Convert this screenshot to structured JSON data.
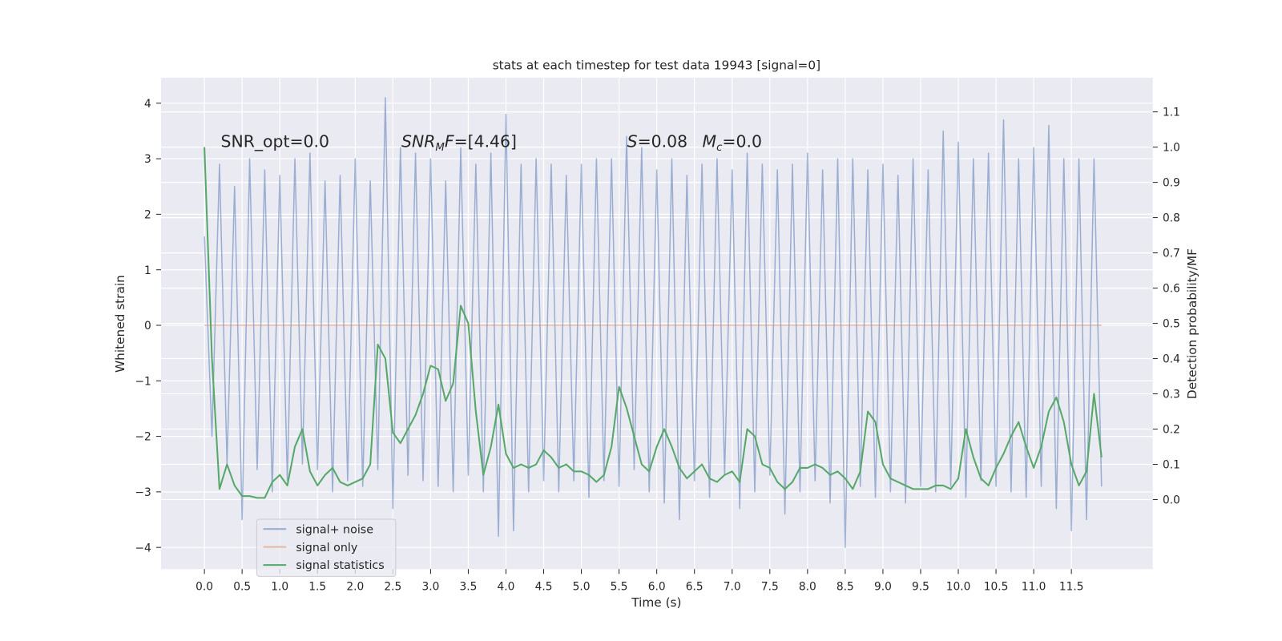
{
  "chart_data": {
    "type": "line",
    "title": "stats at each timestep for test data 19943 [signal=0]",
    "xlabel": "Time (s)",
    "ylabel": "Whitened strain",
    "y2label": "Detection probability/MF",
    "xlim": [
      -0.575,
      12.58
    ],
    "ylim": [
      -4.39,
      4.46
    ],
    "y2lim": [
      -0.197,
      1.197
    ],
    "xticks": [
      {
        "value": 0,
        "label": "0.0"
      },
      0.5,
      {
        "value": 1,
        "label": "1.0"
      },
      1.5,
      {
        "value": 2,
        "label": "2.0"
      },
      2.5,
      {
        "value": 3,
        "label": "3.0"
      },
      3.5,
      {
        "value": 4,
        "label": "4.0"
      },
      4.5,
      {
        "value": 5,
        "label": "5.0"
      },
      5.5,
      {
        "value": 6,
        "label": "6.0"
      },
      6.5,
      {
        "value": 7,
        "label": "7.0"
      },
      7.5,
      {
        "value": 8,
        "label": "8.0"
      },
      8.5,
      {
        "value": 9,
        "label": "9.0"
      },
      9.5,
      {
        "value": 10,
        "label": "10.0"
      },
      10.5,
      {
        "value": 11,
        "label": "11.0"
      },
      11.5
    ],
    "yticks": [
      {
        "value": -4,
        "label": "−4"
      },
      {
        "value": -3,
        "label": "−3"
      },
      {
        "value": -2,
        "label": "−2"
      },
      {
        "value": -1,
        "label": "−1"
      },
      0,
      1,
      2,
      3,
      4
    ],
    "y2ticks": [
      {
        "value": 0,
        "label": "0.0"
      },
      0.1,
      0.2,
      0.3,
      0.4,
      0.5,
      0.6,
      0.7,
      0.8,
      0.9,
      {
        "value": 1,
        "label": "1.0"
      },
      1.1
    ],
    "grid": true,
    "legend": "lower left",
    "annotations": [
      [
        {
          "text": "SNR_opt=0.0"
        }
      ],
      [
        {
          "text": "SNR",
          "style": "italic"
        },
        {
          "text": "M",
          "style": "sub"
        },
        {
          "text": "F",
          "style": "italic"
        },
        {
          "text": "=[4.46]"
        }
      ],
      [
        {
          "text": "S",
          "style": "italic"
        },
        {
          "text": "=0.08"
        }
      ],
      [
        {
          "text": "M",
          "style": "italic"
        },
        {
          "text": "c",
          "style": "sub"
        },
        {
          "text": "=0.0"
        }
      ]
    ],
    "x": [
      0,
      0.1,
      0.2,
      0.3,
      0.4,
      0.5,
      0.6,
      0.7,
      0.8,
      0.9,
      1,
      1.1,
      1.2,
      1.3,
      1.4,
      1.5,
      1.6,
      1.7,
      1.8,
      1.9,
      2,
      2.1,
      2.2,
      2.3,
      2.4,
      2.5,
      2.6,
      2.7,
      2.8,
      2.9,
      3,
      3.1,
      3.2,
      3.3,
      3.4,
      3.5,
      3.6,
      3.7,
      3.8,
      3.9,
      4,
      4.1,
      4.2,
      4.3,
      4.4,
      4.5,
      4.6,
      4.7,
      4.8,
      4.9,
      5,
      5.1,
      5.2,
      5.3,
      5.4,
      5.5,
      5.6,
      5.7,
      5.8,
      5.9,
      6,
      6.1,
      6.2,
      6.3,
      6.4,
      6.5,
      6.6,
      6.7,
      6.8,
      6.9,
      7,
      7.1,
      7.2,
      7.3,
      7.4,
      7.5,
      7.6,
      7.7,
      7.8,
      7.9,
      8,
      8.1,
      8.2,
      8.3,
      8.4,
      8.5,
      8.6,
      8.7,
      8.8,
      8.9,
      9,
      9.1,
      9.2,
      9.3,
      9.4,
      9.5,
      9.6,
      9.7,
      9.8,
      9.9,
      10,
      10.1,
      10.2,
      10.3,
      10.4,
      10.5,
      10.6,
      10.7,
      10.8,
      10.9,
      11,
      11.1,
      11.2,
      11.3,
      11.4,
      11.5,
      11.6,
      11.7,
      11.8,
      11.9
    ],
    "series": [
      {
        "name": "signal+ noise",
        "color": "#4c72b0",
        "opacity": 0.5,
        "values": [
          1.6,
          -2.0,
          2.9,
          -2.5,
          2.5,
          -3.5,
          3.0,
          -2.6,
          2.8,
          -3.0,
          2.7,
          -2.8,
          3.0,
          -2.5,
          3.1,
          -2.6,
          2.6,
          -3.0,
          2.7,
          -2.8,
          3.0,
          -2.9,
          2.6,
          -2.6,
          4.1,
          -3.3,
          3.2,
          -2.7,
          3.1,
          -2.8,
          3.0,
          -2.9,
          2.6,
          -3.0,
          3.2,
          -2.7,
          2.9,
          -3.0,
          3.1,
          -3.8,
          3.8,
          -3.7,
          2.9,
          -3.0,
          3.0,
          -2.8,
          2.9,
          -3.0,
          2.7,
          -2.8,
          2.9,
          -3.1,
          3.0,
          -2.8,
          3.0,
          -2.9,
          3.4,
          -2.6,
          3.2,
          -3.0,
          2.8,
          -3.2,
          3.0,
          -3.5,
          2.7,
          -2.8,
          2.9,
          -3.1,
          3.0,
          -2.7,
          2.8,
          -3.3,
          3.1,
          -3.0,
          2.9,
          -2.7,
          2.8,
          -3.4,
          2.9,
          -3.0,
          3.1,
          -2.8,
          2.8,
          -3.2,
          3.0,
          -4.0,
          3.0,
          -2.9,
          2.8,
          -3.1,
          2.9,
          -3.0,
          2.7,
          -3.2,
          3.0,
          -2.9,
          2.8,
          -3.0,
          3.5,
          -2.9,
          3.3,
          -3.1,
          3.0,
          -2.8,
          3.1,
          -2.9,
          3.7,
          -3.0,
          3.0,
          -3.1,
          3.2,
          -2.9,
          3.6,
          -3.3,
          3.0,
          -3.7,
          3.0,
          -3.5,
          3.0,
          -2.9
        ]
      },
      {
        "name": "signal only",
        "color": "#dd8452",
        "opacity": 0.5,
        "x": [
          0,
          11.9
        ],
        "values": [
          0,
          0
        ]
      },
      {
        "name": "signal statistics",
        "color": "#55a868",
        "opacity": 1,
        "axis": "y2",
        "values": [
          1.0,
          0.4,
          0.03,
          0.1,
          0.04,
          0.01,
          0.01,
          0.005,
          0.005,
          0.05,
          0.07,
          0.04,
          0.15,
          0.2,
          0.08,
          0.04,
          0.07,
          0.09,
          0.05,
          0.04,
          0.05,
          0.06,
          0.1,
          0.44,
          0.4,
          0.19,
          0.16,
          0.2,
          0.24,
          0.3,
          0.38,
          0.37,
          0.28,
          0.33,
          0.55,
          0.5,
          0.25,
          0.07,
          0.15,
          0.27,
          0.13,
          0.09,
          0.1,
          0.09,
          0.1,
          0.14,
          0.12,
          0.09,
          0.1,
          0.08,
          0.08,
          0.07,
          0.05,
          0.07,
          0.15,
          0.32,
          0.26,
          0.18,
          0.1,
          0.08,
          0.15,
          0.2,
          0.15,
          0.09,
          0.06,
          0.08,
          0.1,
          0.06,
          0.05,
          0.07,
          0.08,
          0.05,
          0.2,
          0.18,
          0.1,
          0.09,
          0.05,
          0.03,
          0.05,
          0.09,
          0.09,
          0.1,
          0.09,
          0.07,
          0.08,
          0.06,
          0.03,
          0.08,
          0.25,
          0.22,
          0.1,
          0.06,
          0.05,
          0.04,
          0.03,
          0.03,
          0.03,
          0.04,
          0.04,
          0.03,
          0.06,
          0.2,
          0.12,
          0.06,
          0.04,
          0.09,
          0.13,
          0.18,
          0.22,
          0.15,
          0.09,
          0.15,
          0.25,
          0.29,
          0.22,
          0.1,
          0.04,
          0.08,
          0.3,
          0.12
        ]
      }
    ]
  }
}
